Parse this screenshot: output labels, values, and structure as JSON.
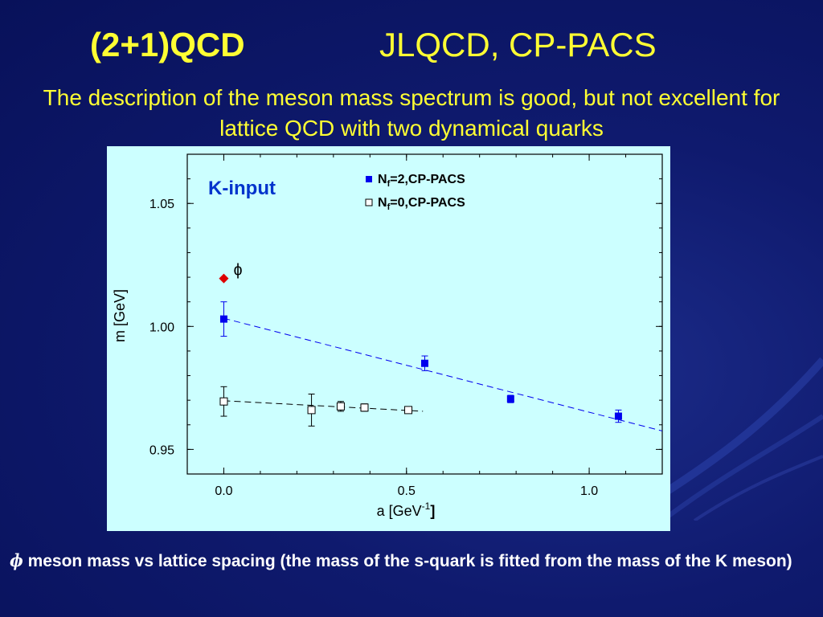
{
  "slide": {
    "title_left": "(2+1)QCD",
    "title_right": "JLQCD, CP-PACS",
    "subtitle": "The description of the meson mass spectrum is good, but not excellent for lattice QCD with two dynamical quarks",
    "footer_symbol": "ɸ",
    "footer_text": " meson mass vs lattice spacing (the mass of the s-quark is fitted from the mass of the K meson)"
  },
  "chart_data": {
    "type": "scatter",
    "inset_label": "K-input",
    "xlabel": "a [GeV",
    "xlabel_sup": "-1",
    "xlabel_close": "]",
    "ylabel": "m [GeV]",
    "xlim": [
      -0.1,
      1.2
    ],
    "ylim": [
      0.94,
      1.07
    ],
    "xticks": [
      0.0,
      0.5,
      1.0
    ],
    "xtick_labels": [
      "0.0",
      "0.5",
      "1.0"
    ],
    "yticks": [
      0.95,
      1.0,
      1.05
    ],
    "ytick_labels": [
      "0.95",
      "1.00",
      "1.05"
    ],
    "grid": false,
    "legend_position": "top-right",
    "series": [
      {
        "name_base": "N",
        "name_sub": "f",
        "name_rest": "=2,CP-PACS",
        "marker": "filled-square",
        "color": "#0000ee",
        "points": [
          {
            "x": 0.0,
            "y": 1.003,
            "err": 0.007
          },
          {
            "x": 0.55,
            "y": 0.985,
            "err": 0.003
          },
          {
            "x": 0.785,
            "y": 0.9705,
            "err": 0.0015
          },
          {
            "x": 1.08,
            "y": 0.9635,
            "err": 0.0025
          }
        ],
        "fit": {
          "x0": 0.0,
          "y0": 1.0033,
          "x1": 1.2,
          "y1": 0.9575
        }
      },
      {
        "name_base": "N",
        "name_sub": "f",
        "name_rest": "=0,CP-PACS",
        "marker": "open-square",
        "color": "#000000",
        "points": [
          {
            "x": 0.0,
            "y": 0.9695,
            "err": 0.006
          },
          {
            "x": 0.24,
            "y": 0.966,
            "err": 0.0065
          },
          {
            "x": 0.32,
            "y": 0.9675,
            "err": 0.002
          },
          {
            "x": 0.385,
            "y": 0.967,
            "err": 0.0015
          },
          {
            "x": 0.505,
            "y": 0.966,
            "err": 0.001
          }
        ],
        "fit": {
          "x0": 0.0,
          "y0": 0.9698,
          "x1": 0.545,
          "y1": 0.9655
        }
      }
    ],
    "experiment": {
      "label": "ɸ",
      "x": 0.0,
      "y": 1.0195,
      "color": "#dd0000",
      "marker": "diamond"
    }
  }
}
